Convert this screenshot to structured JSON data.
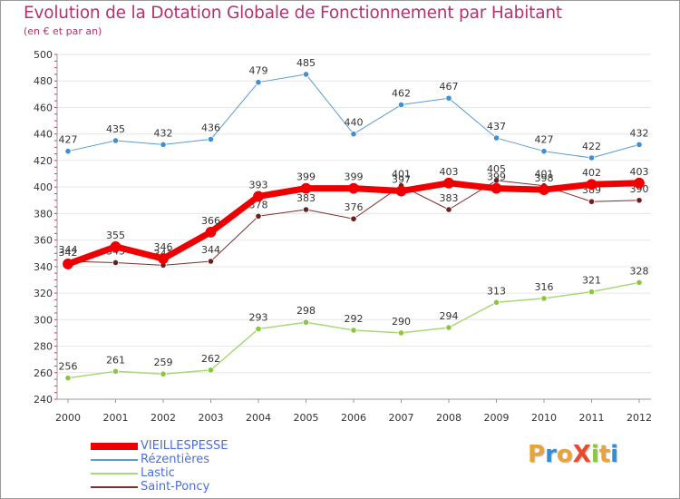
{
  "header": {
    "title": "Evolution de la Dotation Globale de Fonctionnement par Habitant",
    "subtitle": "(en € et par an)"
  },
  "logo": {
    "text": "ProXiti",
    "letters": [
      "P",
      "r",
      "o",
      "X",
      "i",
      "t",
      "i"
    ],
    "colors": [
      "#e8a33a",
      "#2e8fd8",
      "#e8a33a",
      "#e84a2e",
      "#8cc63f",
      "#e8a33a",
      "#2e8fd8"
    ]
  },
  "colors": {
    "title": "#b3336f",
    "grid": "#e6e6e6",
    "axis": "#999999",
    "legend_text": "#4a6ee0"
  },
  "chart_data": {
    "type": "line",
    "x": [
      "2000",
      "2001",
      "2002",
      "2003",
      "2004",
      "2005",
      "2006",
      "2007",
      "2008",
      "2009",
      "2010",
      "2011",
      "2012"
    ],
    "ylim": [
      240,
      500
    ],
    "yticks": [
      240,
      260,
      280,
      300,
      320,
      340,
      360,
      380,
      400,
      420,
      440,
      460,
      480,
      500
    ],
    "grid": "horizontal",
    "legend_position": "bottom-left",
    "series": [
      {
        "name": "Rézentières",
        "color": "#5b9bd5",
        "marker": "#3f8fd2",
        "width": 1,
        "values": [
          427,
          435,
          432,
          436,
          479,
          485,
          440,
          462,
          467,
          437,
          427,
          422,
          432
        ],
        "labels": [
          "427",
          "435",
          "432",
          "436",
          "479",
          "485",
          "440",
          "462",
          "467",
          "437",
          "427",
          "422",
          "432"
        ]
      },
      {
        "name": "Lastic",
        "color": "#a8d878",
        "marker": "#8cc63f",
        "width": 1.5,
        "values": [
          256,
          261,
          259,
          262,
          293,
          298,
          292,
          290,
          294,
          313,
          316,
          321,
          328
        ],
        "labels": [
          "256",
          "261",
          "259",
          "262",
          "293",
          "298",
          "292",
          "290",
          "294",
          "313",
          "316",
          "321",
          "328"
        ]
      },
      {
        "name": "Saint-Poncy",
        "color": "#7a2e2e",
        "marker": "#6b1f1f",
        "width": 1,
        "values": [
          344,
          343,
          341,
          344,
          378,
          383,
          376,
          401,
          383,
          405,
          401,
          389,
          390
        ],
        "labels": [
          "344",
          "343",
          "341",
          "344",
          "378",
          "383",
          "376",
          "401",
          "383",
          "405",
          "401",
          "389",
          "390"
        ]
      },
      {
        "name": "VIEILLESPESSE",
        "color": "#ee0000",
        "marker": "#ee0000",
        "width": 7,
        "values": [
          342,
          355,
          346,
          366,
          393,
          399,
          399,
          397,
          403,
          399,
          398,
          402,
          403
        ],
        "labels": [
          "342",
          "355",
          "346",
          "366",
          "393",
          "399",
          "399",
          "397",
          "403",
          "399",
          "398",
          "402",
          "403"
        ]
      }
    ],
    "legend_order": [
      "VIEILLESPESSE",
      "Rézentières",
      "Lastic",
      "Saint-Poncy"
    ]
  }
}
